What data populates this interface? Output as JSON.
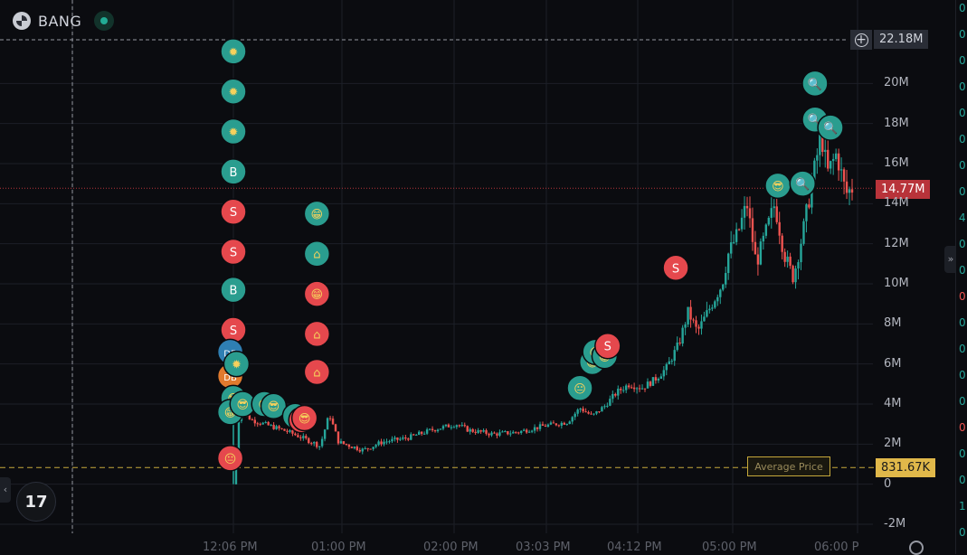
{
  "header": {
    "ticker": "BANG"
  },
  "chart_data": {
    "type": "candlestick",
    "ylim": [
      -2,
      22.4
    ],
    "y_ticks": [
      {
        "value": 20,
        "label": "20M"
      },
      {
        "value": 18,
        "label": "18M"
      },
      {
        "value": 16,
        "label": "16M"
      },
      {
        "value": 14,
        "label": "14M"
      },
      {
        "value": 12,
        "label": "12M"
      },
      {
        "value": 10,
        "label": "10M"
      },
      {
        "value": 8,
        "label": "8M"
      },
      {
        "value": 6,
        "label": "6M"
      },
      {
        "value": 4,
        "label": "4M"
      },
      {
        "value": 2,
        "label": "2M"
      },
      {
        "value": 0,
        "label": "0"
      },
      {
        "value": -2,
        "label": "-2M"
      }
    ],
    "x_ticks": [
      "12:06 PM",
      "01:00 PM",
      "02:00 PM",
      "03:03 PM",
      "04:12 PM",
      "05:00 PM",
      "06:00 P"
    ],
    "price_path": [
      [
        0.0,
        0.0
      ],
      [
        0.01,
        3.7
      ],
      [
        0.03,
        3.2
      ],
      [
        0.06,
        2.9
      ],
      [
        0.09,
        2.6
      ],
      [
        0.12,
        2.2
      ],
      [
        0.14,
        1.9
      ],
      [
        0.155,
        3.5
      ],
      [
        0.17,
        2.1
      ],
      [
        0.19,
        1.9
      ],
      [
        0.21,
        1.7
      ],
      [
        0.24,
        2.1
      ],
      [
        0.28,
        2.3
      ],
      [
        0.32,
        2.7
      ],
      [
        0.36,
        3.0
      ],
      [
        0.38,
        2.7
      ],
      [
        0.42,
        2.5
      ],
      [
        0.46,
        2.6
      ],
      [
        0.5,
        2.9
      ],
      [
        0.54,
        3.1
      ],
      [
        0.56,
        3.8
      ],
      [
        0.58,
        3.4
      ],
      [
        0.6,
        3.9
      ],
      [
        0.62,
        4.6
      ],
      [
        0.64,
        5.0
      ],
      [
        0.66,
        4.8
      ],
      [
        0.68,
        5.2
      ],
      [
        0.7,
        5.8
      ],
      [
        0.72,
        7.0
      ],
      [
        0.735,
        8.6
      ],
      [
        0.75,
        7.6
      ],
      [
        0.77,
        8.8
      ],
      [
        0.79,
        10.0
      ],
      [
        0.8,
        11.5
      ],
      [
        0.815,
        12.5
      ],
      [
        0.83,
        14.0
      ],
      [
        0.845,
        11.0
      ],
      [
        0.86,
        12.5
      ],
      [
        0.875,
        14.0
      ],
      [
        0.89,
        11.5
      ],
      [
        0.905,
        10.3
      ],
      [
        0.92,
        12.5
      ],
      [
        0.935,
        15.0
      ],
      [
        0.95,
        17.5
      ],
      [
        0.96,
        15.5
      ],
      [
        0.975,
        16.5
      ],
      [
        0.99,
        14.5
      ],
      [
        1.0,
        14.77
      ]
    ],
    "markers": [
      {
        "x": 0.0,
        "y": 21.6,
        "color": "#2a9d8f",
        "icon": "explosion",
        "label": ""
      },
      {
        "x": 0.0,
        "y": 19.6,
        "color": "#2a9d8f",
        "icon": "explosion",
        "label": ""
      },
      {
        "x": 0.0,
        "y": 17.6,
        "color": "#2a9d8f",
        "icon": "explosion",
        "label": ""
      },
      {
        "x": 0.0,
        "y": 15.6,
        "color": "#2a9d8f",
        "icon": "letter",
        "label": "B"
      },
      {
        "x": 0.0,
        "y": 13.6,
        "color": "#e5484d",
        "icon": "letter",
        "label": "S"
      },
      {
        "x": 0.0,
        "y": 11.6,
        "color": "#e5484d",
        "icon": "letter",
        "label": "S"
      },
      {
        "x": 0.0,
        "y": 9.7,
        "color": "#2a9d8f",
        "icon": "letter",
        "label": "B"
      },
      {
        "x": 0.0,
        "y": 7.7,
        "color": "#e5484d",
        "icon": "letter",
        "label": "S"
      },
      {
        "x": -0.005,
        "y": 6.6,
        "color": "#2f7fb3",
        "icon": "letter",
        "label": "DB"
      },
      {
        "x": -0.005,
        "y": 5.4,
        "color": "#e07a2e",
        "icon": "letter",
        "label": "DB"
      },
      {
        "x": 0.005,
        "y": 6.0,
        "color": "#2a9d8f",
        "icon": "explosion",
        "label": ""
      },
      {
        "x": 0.0,
        "y": 4.3,
        "color": "#2a9d8f",
        "icon": "sunglasses",
        "label": ""
      },
      {
        "x": -0.005,
        "y": 3.6,
        "color": "#2a9d8f",
        "icon": "grin",
        "label": ""
      },
      {
        "x": 0.015,
        "y": 4.0,
        "color": "#2a9d8f",
        "icon": "sunglasses",
        "label": ""
      },
      {
        "x": 0.05,
        "y": 4.0,
        "color": "#2a9d8f",
        "icon": "sunglasses",
        "label": ""
      },
      {
        "x": 0.065,
        "y": 3.9,
        "color": "#2a9d8f",
        "icon": "sunglasses",
        "label": ""
      },
      {
        "x": 0.1,
        "y": 3.4,
        "color": "#2a9d8f",
        "icon": "sunglasses",
        "label": ""
      },
      {
        "x": 0.11,
        "y": 3.2,
        "color": "#e5484d",
        "icon": "sunglasses",
        "label": ""
      },
      {
        "x": 0.115,
        "y": 3.3,
        "color": "#e5484d",
        "icon": "sunglasses",
        "label": ""
      },
      {
        "x": -0.005,
        "y": 1.3,
        "color": "#e5484d",
        "icon": "neutral",
        "label": ""
      },
      {
        "x": 0.135,
        "y": 13.5,
        "color": "#2a9d8f",
        "icon": "grin",
        "label": ""
      },
      {
        "x": 0.135,
        "y": 11.5,
        "color": "#2a9d8f",
        "icon": "castle",
        "label": ""
      },
      {
        "x": 0.135,
        "y": 9.5,
        "color": "#e5484d",
        "icon": "grin",
        "label": ""
      },
      {
        "x": 0.135,
        "y": 7.5,
        "color": "#e5484d",
        "icon": "castle",
        "label": ""
      },
      {
        "x": 0.135,
        "y": 5.6,
        "color": "#e5484d",
        "icon": "castle",
        "label": ""
      },
      {
        "x": 0.56,
        "y": 4.8,
        "color": "#2a9d8f",
        "icon": "neutral",
        "label": ""
      },
      {
        "x": 0.58,
        "y": 6.1,
        "color": "#2a9d8f",
        "icon": "grin",
        "label": ""
      },
      {
        "x": 0.585,
        "y": 6.6,
        "color": "#2a9d8f",
        "icon": "neutral",
        "label": ""
      },
      {
        "x": 0.6,
        "y": 6.4,
        "color": "#2a9d8f",
        "icon": "grin",
        "label": ""
      },
      {
        "x": 0.605,
        "y": 6.9,
        "color": "#e5484d",
        "icon": "letter",
        "label": "S"
      },
      {
        "x": 0.715,
        "y": 10.8,
        "color": "#e5484d",
        "icon": "letter",
        "label": "S"
      },
      {
        "x": 0.88,
        "y": 14.9,
        "color": "#2a9d8f",
        "icon": "sunglasses",
        "label": ""
      },
      {
        "x": 0.92,
        "y": 15.0,
        "color": "#2a9d8f",
        "icon": "magnifier",
        "label": ""
      },
      {
        "x": 0.94,
        "y": 20.0,
        "color": "#2a9d8f",
        "icon": "magnifier",
        "label": ""
      },
      {
        "x": 0.94,
        "y": 18.2,
        "color": "#2a9d8f",
        "icon": "magnifier",
        "label": ""
      },
      {
        "x": 0.965,
        "y": 17.8,
        "color": "#2a9d8f",
        "icon": "magnifier",
        "label": ""
      }
    ],
    "crosshair_label": "22.18M",
    "crosshair_value": 22.18,
    "last_price_label": "14.77M",
    "last_price_value": 14.77,
    "average_price_label": "Average Price",
    "average_price_value_label": "831.67K",
    "average_price_value": 0.83167,
    "colors": {
      "up": "#26a69a",
      "down": "#ef5350",
      "grid": "#1c1f27",
      "avg": "#c6a83a",
      "last": "#b8333a"
    }
  },
  "right_strip": [
    "0",
    "0",
    "0",
    "0",
    "0",
    "0",
    "0",
    "0",
    "4",
    "0",
    "0",
    "0",
    "0",
    "0",
    "0",
    "0",
    "0",
    "0",
    "0",
    "1",
    "0"
  ]
}
